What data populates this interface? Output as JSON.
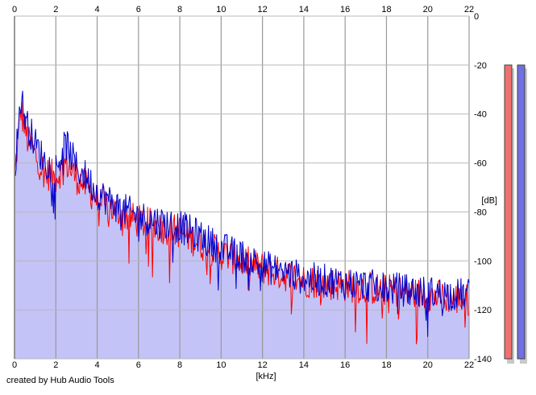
{
  "chart_data": {
    "type": "area",
    "x_unit_label": "[kHz]",
    "y_unit_label": "[dB]",
    "xlim": [
      0,
      22
    ],
    "ylim": [
      -140,
      0
    ],
    "x_ticks": [
      "0",
      "2",
      "4",
      "6",
      "8",
      "10",
      "12",
      "14",
      "16",
      "18",
      "20",
      "22"
    ],
    "y_ticks": [
      "0",
      "-20",
      "-40",
      "-60",
      "-80",
      "-100",
      "-120",
      "-140"
    ],
    "grid": true,
    "series": [
      {
        "channel": "left",
        "color": "#ff0000",
        "x": [
          0,
          0.3,
          0.6,
          1,
          1.5,
          2,
          2.5,
          3,
          3.5,
          4,
          5,
          6,
          7,
          8,
          9,
          10,
          11,
          12,
          14,
          16,
          18,
          20,
          22
        ],
        "y": [
          -66,
          -38,
          -50,
          -57,
          -64,
          -66,
          -60,
          -66,
          -70,
          -75,
          -80,
          -84,
          -86,
          -88,
          -93,
          -97,
          -100,
          -103,
          -108,
          -110,
          -112,
          -114,
          -116
        ]
      },
      {
        "channel": "right",
        "color": "#0000cc",
        "x": [
          0,
          0.3,
          0.6,
          1,
          1.5,
          2,
          2.5,
          3,
          3.5,
          4,
          5,
          6,
          7,
          8,
          9,
          10,
          11,
          12,
          14,
          16,
          18,
          20,
          22
        ],
        "y": [
          -64,
          -33,
          -44,
          -52,
          -60,
          -62,
          -52,
          -62,
          -66,
          -72,
          -78,
          -82,
          -84,
          -86,
          -90,
          -95,
          -98,
          -102,
          -107,
          -109,
          -111,
          -113,
          -114
        ]
      }
    ],
    "fill_color": "#c3c3f7",
    "level_meters": [
      {
        "channel": "left",
        "color": "#f07070",
        "level_db": -20
      },
      {
        "channel": "right",
        "color": "#7070e0",
        "level_db": -20
      }
    ]
  },
  "footer": {
    "credit": "created by Hub Audio Tools"
  }
}
